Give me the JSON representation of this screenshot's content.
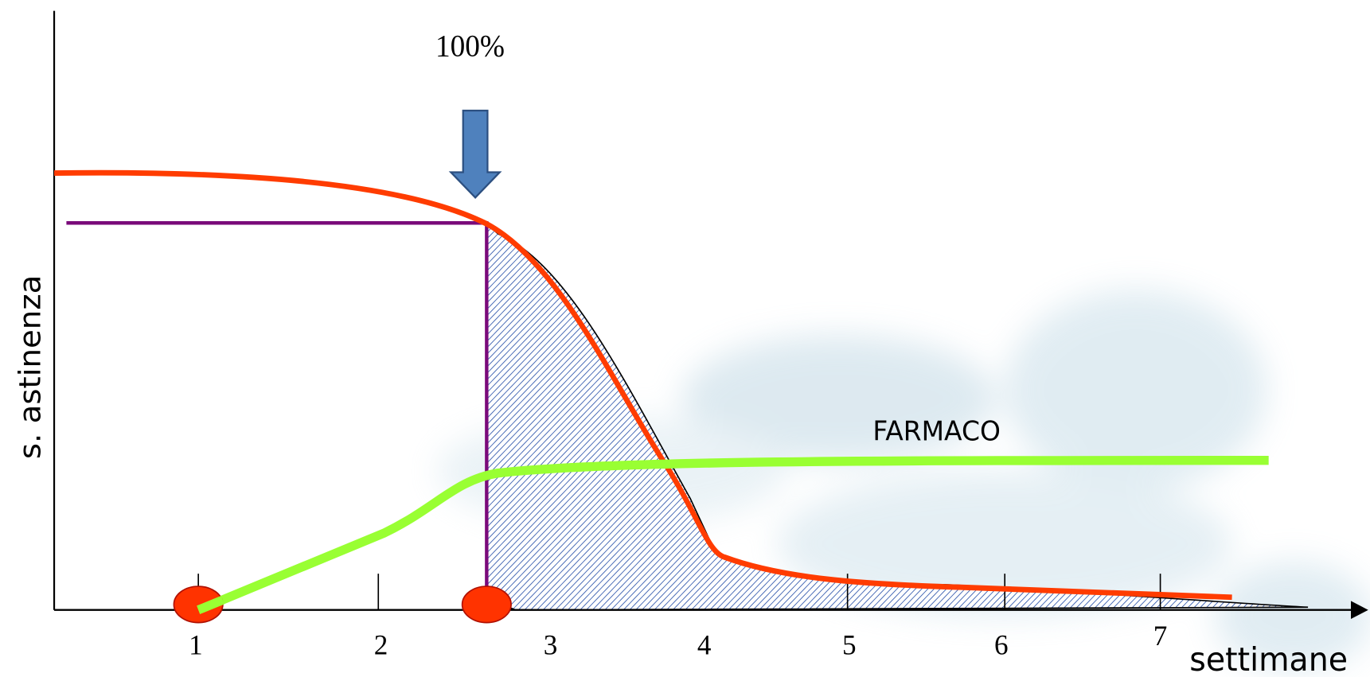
{
  "marker_label": "100%",
  "y_axis_label": "s. astinenza",
  "x_axis_label": "settimane",
  "x_tick_labels": [
    "1",
    "2",
    "3",
    "4",
    "5",
    "6",
    "7"
  ],
  "curve_label": "FARMACO"
}
